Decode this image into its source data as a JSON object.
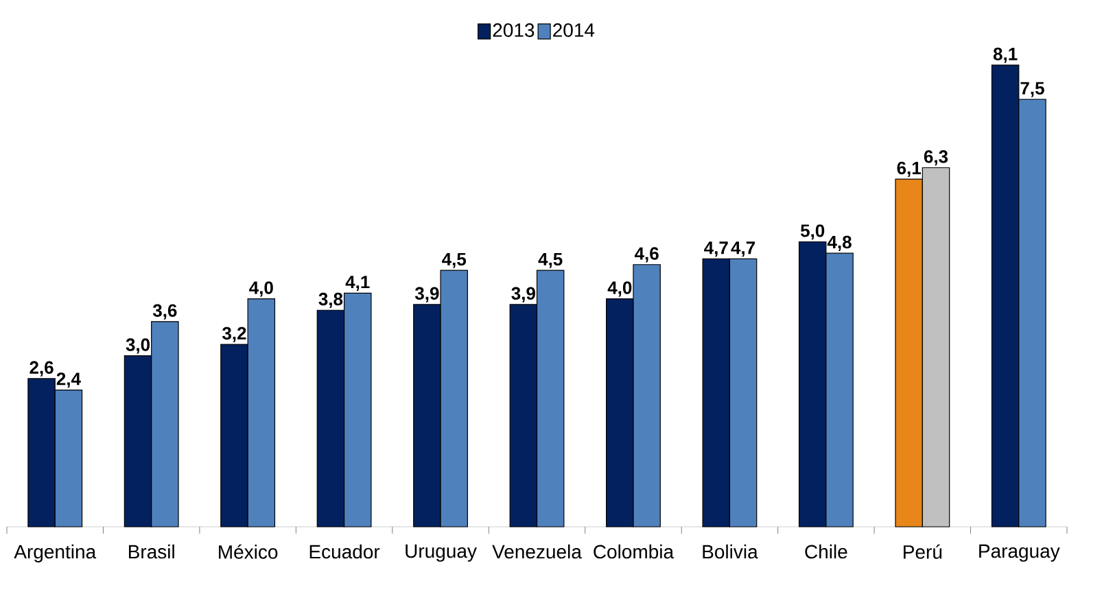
{
  "chart_data": {
    "type": "bar",
    "categories": [
      "Argentina",
      "Brasil",
      "México",
      "Ecuador",
      "Uruguay",
      "Venezuela",
      "Colombia",
      "Bolivia",
      "Chile",
      "Perú",
      "Paraguay"
    ],
    "series": [
      {
        "name": "2013",
        "color": "#03215e",
        "colors": [
          "#03215e",
          "#03215e",
          "#03215e",
          "#03215e",
          "#03215e",
          "#03215e",
          "#03215e",
          "#03215e",
          "#03215e",
          "#e8861a",
          "#03215e"
        ],
        "values": [
          2.6,
          3.0,
          3.2,
          3.8,
          3.9,
          3.9,
          4.0,
          4.7,
          5.0,
          6.1,
          8.1
        ],
        "value_labels": [
          "2,6",
          "3,0",
          "3,2",
          "3,8",
          "3,9",
          "3,9",
          "4,0",
          "4,7",
          "5,0",
          "6,1",
          "8,1"
        ]
      },
      {
        "name": "2014",
        "color": "#4f81bd",
        "colors": [
          "#4f81bd",
          "#4f81bd",
          "#4f81bd",
          "#4f81bd",
          "#4f81bd",
          "#4f81bd",
          "#4f81bd",
          "#4f81bd",
          "#4f81bd",
          "#c0c0c0",
          "#4f81bd"
        ],
        "values": [
          2.4,
          3.6,
          4.0,
          4.1,
          4.5,
          4.5,
          4.6,
          4.7,
          4.8,
          6.3,
          7.5
        ],
        "value_labels": [
          "2,4",
          "3,6",
          "4,0",
          "4,1",
          "4,5",
          "4,5",
          "4,6",
          "4,7",
          "4,8",
          "6,3",
          "7,5"
        ]
      }
    ],
    "legend": "top"
  }
}
